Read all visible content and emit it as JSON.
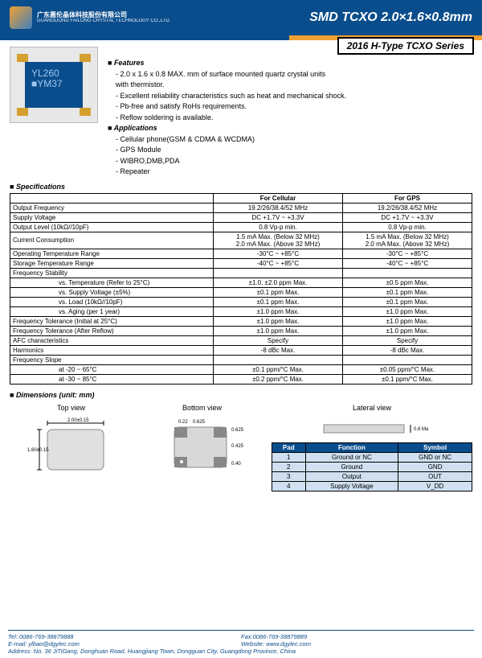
{
  "header": {
    "company_cn": "广东惠伦晶体科技股份有限公司",
    "company_en": "GUANGDONG FAILONG CRYSTAL TECHNOLOGY CO.,LTD.",
    "title": "SMD TCXO 2.0×1.6×0.8mm",
    "series": "2016 H-Type TCXO  Series"
  },
  "chip": {
    "line1": "YL260",
    "line2": "■YM37"
  },
  "features": {
    "title": "Features",
    "items": [
      "2.0 x 1.6 x 0.8   MAX. mm of surface mounted quartz crystal units",
      "with thermistor.",
      "Excellent reliability characteristics such as heat and mechanical shock.",
      "Pb-free and satisfy RoHs requirements.",
      "Reflow soldering is available."
    ]
  },
  "applications": {
    "title": "Applications",
    "items": [
      "Cellular phone(GSM & CDMA & WCDMA)",
      "GPS Module",
      "WIBRO,DMB,PDA",
      "Repeater"
    ]
  },
  "spec": {
    "title": "Specifications",
    "head": [
      "",
      "For Cellular",
      "For GPS"
    ],
    "rows": [
      [
        "Output Frequency",
        "19.2/26/38.4/52 MHz",
        "19.2/26/38.4/52 MHz"
      ],
      [
        "Supply Voltage",
        "DC +1.7V ~ +3.3V",
        "DC +1.7V ~ +3.3V"
      ],
      [
        "Output Level (10kΩ//10pF)",
        "0.8 Vp-p min.",
        "0.8 Vp-p min."
      ],
      [
        "Current Consumption",
        "1.5 mA  Max. (Below 32 MHz)\n2.0 mA  Max. (Above 32 MHz)",
        "1.5 mA  Max. (Below 32 MHz)\n2.0 mA  Max. (Above 32 MHz)"
      ],
      [
        "Operating Temperature Range",
        "-30°C ~ +85°C",
        "-30°C ~ +85°C"
      ],
      [
        "Storage Temperature Range",
        "-40°C ~ +85°C",
        "-40°C ~ +85°C"
      ],
      [
        "Frequency Stability",
        "",
        ""
      ]
    ],
    "subs": [
      [
        "vs. Temperature (Refer to 25°C)",
        "±1.0, ±2.0 ppm Max.",
        "±0.5 ppm Max."
      ],
      [
        "vs. Supply Voltage (±5%)",
        "±0.1 ppm Max.",
        "±0.1 ppm Max."
      ],
      [
        "vs. Load (10kΩ//10pF)",
        "±0.1 ppm Max.",
        "±0.1 ppm Max."
      ],
      [
        "vs. Aging (per 1 year)",
        "±1.0 ppm Max.",
        "±1.0 ppm Max."
      ]
    ],
    "rows2": [
      [
        "Frequency Tolerance (Initial at 25°C)",
        "±1.0 ppm Max.",
        "±1.0 ppm Max."
      ],
      [
        "Frequency Tolerance (After Reflow)",
        "±1.0 ppm Max.",
        "±1.0 ppm Max."
      ],
      [
        "AFC characteristics",
        "Specify",
        "Specify"
      ],
      [
        "Harmonics",
        "-8 dBc Max.",
        "-8 dBc Max."
      ],
      [
        "Frequency Slope",
        "",
        ""
      ]
    ],
    "subs2": [
      [
        "at -20 ~ 65°C",
        "±0.1 ppm/°C Max.",
        "±0.05 ppm/°C Max."
      ],
      [
        "at -30 ~ 85°C",
        "±0.2 ppm/°C Max.",
        "±0.1 ppm/°C Max."
      ]
    ]
  },
  "dim": {
    "title": "Dimensions (unit: mm)",
    "views": [
      "Top view",
      "Bottom view",
      "Lateral view"
    ],
    "top_w": "2.00±0.15",
    "top_h": "1.60±0.15",
    "bot": [
      "0.22",
      "0.625",
      "0.625",
      "0.425",
      "0.40"
    ],
    "lat": "0.8 Max"
  },
  "padtable": {
    "head": [
      "Pad",
      "Function",
      "Symbol"
    ],
    "rows": [
      [
        "1",
        "Ground or NC",
        "GND or NC"
      ],
      [
        "2",
        "Ground",
        "GND"
      ],
      [
        "3",
        "Output",
        "OUT"
      ],
      [
        "4",
        "Supply Voltage",
        "V_DD"
      ]
    ]
  },
  "footer": {
    "tel": "Tel: 0086-769-38879888",
    "fax": "Fax:0086-769-38879889",
    "email": "E-mail: ylbao@dgylec.com",
    "web": "Website: www.dgylec.com",
    "addr": "Address: No. 36 JiTiGang, Donghuan Road, Huangjiang Town, Dongguan City, Guangdong Province, China"
  },
  "colors": {
    "brand": "#0a4d8c",
    "accent": "#f0a030"
  }
}
